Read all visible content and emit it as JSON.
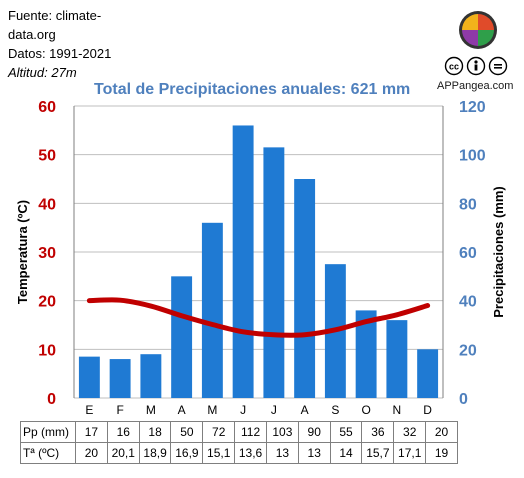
{
  "source": {
    "line1": "Fuente: climate-",
    "line2": "data.org",
    "years": "Datos: 1991-2021",
    "altitude": "Altitud: 27m"
  },
  "brand": "APPangea.com",
  "title": "Total de Precipitaciones anuales: 621 mm",
  "colors": {
    "temperature": "#c00000",
    "precipitation": "#1f7ad3",
    "title": "#4f80bd"
  },
  "chart_data": {
    "type": "bar+line",
    "categories": [
      "E",
      "F",
      "M",
      "A",
      "M",
      "J",
      "J",
      "A",
      "S",
      "O",
      "N",
      "D"
    ],
    "series": [
      {
        "name": "Pp (mm)",
        "type": "bar",
        "axis": "right",
        "values": [
          17,
          16,
          18,
          50,
          72,
          112,
          103,
          90,
          55,
          36,
          32,
          20
        ]
      },
      {
        "name": "Tª (ºC)",
        "type": "line",
        "axis": "left",
        "values": [
          20,
          20.1,
          18.9,
          16.9,
          15.1,
          13.6,
          13,
          13,
          14,
          15.7,
          17.1,
          19
        ]
      }
    ],
    "ylabel_left": "Temperatura (ºC)",
    "ylabel_right": "Precipitaciones (mm)",
    "ylim_left": [
      0,
      60
    ],
    "ylim_right": [
      0,
      120
    ],
    "yticks_left": [
      "0",
      "10",
      "20",
      "30",
      "40",
      "50",
      "60"
    ],
    "yticks_right": [
      "0",
      "20",
      "40",
      "60",
      "80",
      "100",
      "120"
    ],
    "table": {
      "rows": [
        {
          "label": "Pp (mm)",
          "cells": [
            "17",
            "16",
            "18",
            "50",
            "72",
            "112",
            "103",
            "90",
            "55",
            "36",
            "32",
            "20"
          ]
        },
        {
          "label": "Tª (ºC)",
          "cells": [
            "20",
            "20,1",
            "18,9",
            "16,9",
            "15,1",
            "13,6",
            "13",
            "13",
            "14",
            "15,7",
            "17,1",
            "19"
          ]
        }
      ]
    }
  }
}
